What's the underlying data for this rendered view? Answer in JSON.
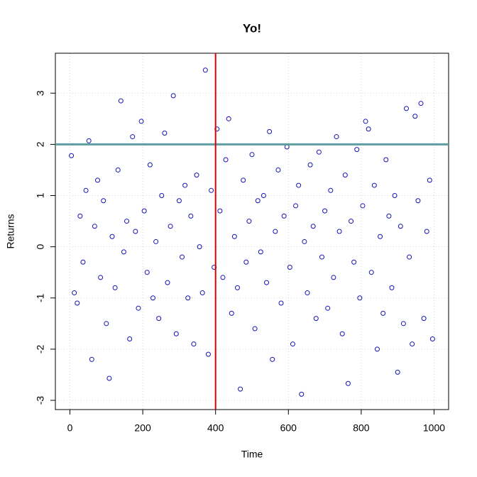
{
  "chart_data": {
    "type": "scatter",
    "title": "Yo!",
    "x_label": "Time",
    "y_label": "Returns",
    "series": [
      {
        "color": "#1414b4",
        "x": [
          4,
          12,
          20,
          28,
          36,
          44,
          52,
          60,
          68,
          76,
          84,
          92,
          100,
          108,
          116,
          124,
          132,
          140,
          148,
          156,
          164,
          172,
          180,
          188,
          196,
          204,
          212,
          220,
          228,
          236,
          244,
          252,
          260,
          268,
          276,
          284,
          292,
          300,
          308,
          316,
          324,
          332,
          340,
          348,
          356,
          364,
          372,
          380,
          388,
          396,
          404,
          412,
          420,
          428,
          436,
          444,
          452,
          460,
          468,
          476,
          484,
          492,
          500,
          508,
          516,
          524,
          532,
          540,
          548,
          556,
          564,
          572,
          580,
          588,
          596,
          604,
          612,
          620,
          628,
          636,
          644,
          652,
          660,
          668,
          676,
          684,
          692,
          700,
          708,
          716,
          724,
          732,
          740,
          748,
          756,
          764,
          772,
          780,
          788,
          796,
          804,
          812,
          820,
          828,
          836,
          844,
          852,
          860,
          868,
          876,
          884,
          892,
          900,
          908,
          916,
          924,
          932,
          940,
          948,
          956,
          964,
          972,
          980,
          988,
          996
        ],
        "values": [
          1.78,
          -0.9,
          -1.1,
          0.6,
          -0.3,
          1.1,
          2.07,
          -2.2,
          0.4,
          1.3,
          -0.6,
          0.9,
          -1.5,
          -2.57,
          0.2,
          -0.8,
          1.5,
          2.85,
          -0.1,
          0.5,
          -1.8,
          2.15,
          0.3,
          -1.2,
          2.45,
          0.7,
          -0.5,
          1.6,
          -1.0,
          0.1,
          -1.4,
          1.0,
          2.22,
          -0.7,
          0.4,
          2.95,
          -1.7,
          0.9,
          -0.2,
          1.2,
          -1.0,
          0.6,
          -1.9,
          1.4,
          0.0,
          -0.9,
          3.45,
          -2.1,
          1.1,
          -0.4,
          2.3,
          0.7,
          -0.6,
          1.7,
          2.5,
          -1.3,
          0.2,
          -0.8,
          -2.78,
          1.3,
          -0.3,
          0.5,
          1.8,
          -1.6,
          0.9,
          -0.1,
          1.0,
          -0.7,
          2.25,
          -2.2,
          0.3,
          1.5,
          -1.1,
          0.6,
          1.95,
          -0.4,
          -1.9,
          0.8,
          1.2,
          -2.88,
          0.1,
          -0.9,
          1.6,
          0.4,
          -1.4,
          1.85,
          -0.2,
          0.7,
          -1.2,
          1.1,
          -0.6,
          2.15,
          0.3,
          -1.7,
          1.4,
          -2.67,
          0.5,
          -0.3,
          1.9,
          -1.0,
          0.8,
          2.45,
          2.3,
          -0.5,
          1.2,
          -2.0,
          0.2,
          -1.3,
          1.7,
          0.6,
          -0.8,
          1.0,
          -2.45,
          0.4,
          -1.5,
          2.7,
          -0.2,
          -1.9,
          2.55,
          0.9,
          2.8,
          -1.4,
          0.3,
          1.3,
          -1.8
        ]
      }
    ],
    "xlim": [
      -40,
      1040
    ],
    "ylim": [
      -3.18,
      3.78
    ],
    "xticks": [
      0,
      200,
      400,
      600,
      800,
      1000
    ],
    "yticks": [
      -3,
      -2,
      -1,
      0,
      1,
      2,
      3
    ],
    "grid": true,
    "hlines": [
      {
        "value": 2,
        "color": "#5f9ea0"
      }
    ],
    "vlines": [
      {
        "value": 400,
        "color": "#e00000"
      }
    ]
  }
}
